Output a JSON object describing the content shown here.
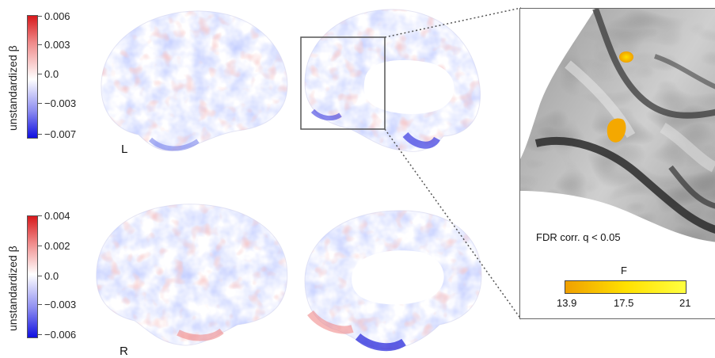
{
  "top_colorbar": {
    "label": "unstandardized β",
    "ticks": [
      "0.006",
      "0.003",
      "0.0",
      "−0.003",
      "−0.007"
    ],
    "range": [
      -0.007,
      0.006
    ]
  },
  "bottom_colorbar": {
    "label": "unstandardized β",
    "ticks": [
      "0.004",
      "0.002",
      "0.0",
      "−0.003",
      "−0.006"
    ],
    "range": [
      -0.006,
      0.004
    ]
  },
  "hemispheres": {
    "left": "L",
    "right": "R"
  },
  "inset": {
    "threshold_text": "FDR corr. q < 0.05",
    "colorbar_label": "F",
    "colorbar_ticks": [
      "13.9",
      "17.5",
      "21"
    ],
    "colorbar_range": [
      13.9,
      21
    ]
  },
  "colors": {
    "positive": "#d7191c",
    "negative": "#1010e0",
    "neutral": "#ffffff",
    "f_low": "#f0a000",
    "f_high": "#ffff40"
  }
}
